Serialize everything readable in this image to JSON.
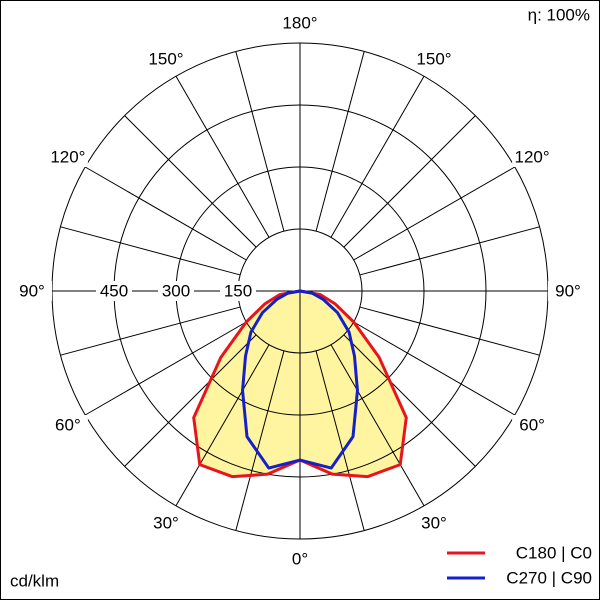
{
  "chart_data": {
    "type": "polar",
    "efficiency_label": "η: 100%",
    "unit_label": "cd/klm",
    "angles": [
      -90,
      -80,
      -70,
      -60,
      -50,
      -40,
      -30,
      -20,
      -10,
      0,
      10,
      20,
      30,
      40,
      50,
      60,
      70,
      80,
      90
    ],
    "series": [
      {
        "name": "C180 | C0",
        "color": "#e8141c",
        "values": [
          0,
          50,
          90,
          150,
          250,
          400,
          485,
          478,
          450,
          409,
          450,
          478,
          485,
          400,
          250,
          150,
          90,
          50,
          0
        ]
      },
      {
        "name": "C270 | C90",
        "color": "#1420c8",
        "values": [
          0,
          30,
          60,
          105,
          155,
          205,
          278,
          375,
          435,
          409,
          435,
          375,
          278,
          205,
          155,
          105,
          60,
          30,
          0
        ]
      }
    ],
    "fill_color": "#fff5a0",
    "rlim": [
      0,
      600
    ],
    "rticks": [
      150,
      300,
      450
    ],
    "angle_grid_step": 15,
    "angle_ticks": [
      {
        "value": 0,
        "label": "0°"
      },
      {
        "value": 30,
        "label": "30°"
      },
      {
        "value": -30,
        "label": "30°"
      },
      {
        "value": 60,
        "label": "60°"
      },
      {
        "value": -60,
        "label": "60°"
      },
      {
        "value": 90,
        "label": "90°"
      },
      {
        "value": -90,
        "label": "90°"
      },
      {
        "value": 120,
        "label": "120°"
      },
      {
        "value": -120,
        "label": "120°"
      },
      {
        "value": 150,
        "label": "150°"
      },
      {
        "value": -150,
        "label": "150°"
      },
      {
        "value": 180,
        "label": "180°"
      }
    ]
  }
}
